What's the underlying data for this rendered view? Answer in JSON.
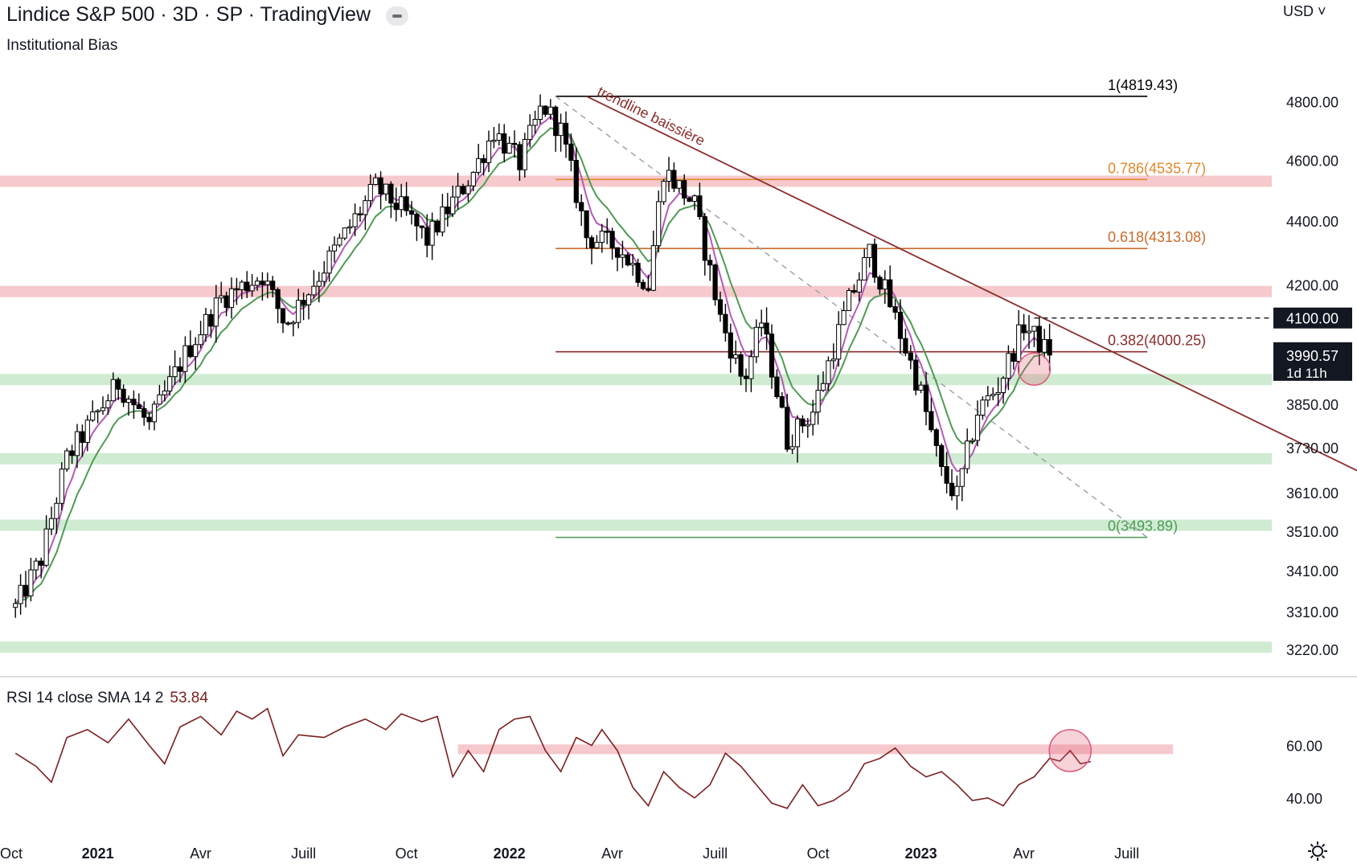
{
  "header": {
    "title": "Lindice S&P 500 · 3D · SP  · TradingView",
    "subtitle": "Institutional Bias",
    "currency": "USD",
    "collapse_icon": "minus-icon"
  },
  "settings_icon": "gear-icon",
  "colors": {
    "candle": "#000000",
    "ema_fast": "#b45ab8",
    "ema_slow": "#4f9a55",
    "resistance_zone": "#f6c9cc",
    "support_zone": "#cfecd2",
    "trendline": "#8b2c2c",
    "fib_0786": "#e0892b",
    "fib_0618": "#c96b2a",
    "fib_0382": "#8b2c2c",
    "rsi_line": "#7b1f1f"
  },
  "chart_data": [
    {
      "type": "candlestick",
      "title": "Lindice S&P 500",
      "timeframe": "3D",
      "price_scale": "log",
      "ylim": [
        3160,
        5080
      ],
      "x_ticks": [
        "Oct",
        "2021",
        "Avr",
        "Juill",
        "Oct",
        "2022",
        "Avr",
        "Juill",
        "Oct",
        "2023",
        "Avr",
        "Juill"
      ],
      "y_ticks": [
        4800.0,
        4600.0,
        4400.0,
        4200.0,
        3850.0,
        3730.0,
        3610.0,
        3510.0,
        3410.0,
        3310.0,
        3220.0
      ],
      "path_points": [
        {
          "t": 0,
          "p": 3320
        },
        {
          "t": 10,
          "p": 3440
        },
        {
          "t": 20,
          "p": 3700
        },
        {
          "t": 40,
          "p": 3910
        },
        {
          "t": 52,
          "p": 3790
        },
        {
          "t": 65,
          "p": 3980
        },
        {
          "t": 80,
          "p": 4160
        },
        {
          "t": 96,
          "p": 4230
        },
        {
          "t": 105,
          "p": 4080
        },
        {
          "t": 118,
          "p": 4230
        },
        {
          "t": 140,
          "p": 4510
        },
        {
          "t": 150,
          "p": 4440
        },
        {
          "t": 160,
          "p": 4340
        },
        {
          "t": 178,
          "p": 4560
        },
        {
          "t": 186,
          "p": 4700
        },
        {
          "t": 196,
          "p": 4590
        },
        {
          "t": 205,
          "p": 4790
        },
        {
          "t": 212,
          "p": 4700
        },
        {
          "t": 222,
          "p": 4350
        },
        {
          "t": 234,
          "p": 4320
        },
        {
          "t": 246,
          "p": 4200
        },
        {
          "t": 252,
          "p": 4570
        },
        {
          "t": 264,
          "p": 4450
        },
        {
          "t": 274,
          "p": 4100
        },
        {
          "t": 283,
          "p": 3910
        },
        {
          "t": 290,
          "p": 4090
        },
        {
          "t": 300,
          "p": 3750
        },
        {
          "t": 310,
          "p": 3830
        },
        {
          "t": 324,
          "p": 4150
        },
        {
          "t": 332,
          "p": 4300
        },
        {
          "t": 340,
          "p": 4140
        },
        {
          "t": 352,
          "p": 3880
        },
        {
          "t": 360,
          "p": 3660
        },
        {
          "t": 366,
          "p": 3600
        },
        {
          "t": 374,
          "p": 3830
        },
        {
          "t": 382,
          "p": 3900
        },
        {
          "t": 392,
          "p": 4080
        },
        {
          "t": 402,
          "p": 3990.57
        }
      ],
      "moving_averages": [
        {
          "name": "",
          "color_key": "ema_fast"
        },
        {
          "name": "",
          "color_key": "ema_slow"
        }
      ],
      "last_price": {
        "value": "3990.57",
        "countdown": "1d 11h"
      },
      "marked_level": {
        "value": "4100.00",
        "line": "dashed"
      },
      "zones": [
        {
          "kind": "resistance",
          "price": 4530
        },
        {
          "kind": "resistance",
          "price": 4180
        },
        {
          "kind": "support",
          "price": 3920
        },
        {
          "kind": "support",
          "price": 3700
        },
        {
          "kind": "support",
          "price": 3525
        },
        {
          "kind": "support",
          "price": 3225
        }
      ],
      "fibonacci": {
        "start_t": 210,
        "end_t": 440,
        "levels": [
          {
            "ratio": 1,
            "price": 4819.43,
            "label": "1(4819.43)",
            "color_key": "candle"
          },
          {
            "ratio": 0.786,
            "price": 4535.77,
            "label": "0.786(4535.77)",
            "color_key": "fib_0786"
          },
          {
            "ratio": 0.618,
            "price": 4313.08,
            "label": "0.618(4313.08)",
            "color_key": "fib_0618"
          },
          {
            "ratio": 0.382,
            "price": 4000.25,
            "label": "0.382(4000.25)",
            "color_key": "fib_0382"
          },
          {
            "ratio": 0,
            "price": 3493.89,
            "label": "0(3493.89)",
            "color_key": "ema_slow"
          }
        ]
      },
      "trendline": {
        "label": "trendline baissière",
        "from": {
          "t": 222,
          "p": 4819.43
        },
        "to": {
          "t": 530,
          "p": 3640
        }
      },
      "dashed_diagonal": {
        "from": {
          "t": 210,
          "p": 4819.43
        },
        "to": {
          "t": 440,
          "p": 3493.89
        }
      },
      "highlight": {
        "t": 396,
        "p": 3950
      }
    },
    {
      "type": "line",
      "title": "RSI 14 close SMA 14 2",
      "current_value": "53.84",
      "ylim": [
        28,
        80
      ],
      "y_ticks": [
        60.0,
        40.0
      ],
      "series": [
        {
          "name": "RSI",
          "points": [
            {
              "t": 0,
              "v": 57
            },
            {
              "t": 8,
              "v": 52
            },
            {
              "t": 14,
              "v": 46
            },
            {
              "t": 20,
              "v": 63
            },
            {
              "t": 28,
              "v": 66
            },
            {
              "t": 36,
              "v": 61
            },
            {
              "t": 44,
              "v": 70
            },
            {
              "t": 52,
              "v": 60
            },
            {
              "t": 58,
              "v": 53
            },
            {
              "t": 64,
              "v": 67
            },
            {
              "t": 72,
              "v": 71
            },
            {
              "t": 80,
              "v": 64
            },
            {
              "t": 86,
              "v": 73
            },
            {
              "t": 92,
              "v": 70
            },
            {
              "t": 98,
              "v": 74
            },
            {
              "t": 104,
              "v": 56
            },
            {
              "t": 110,
              "v": 64
            },
            {
              "t": 120,
              "v": 63
            },
            {
              "t": 128,
              "v": 67
            },
            {
              "t": 136,
              "v": 70
            },
            {
              "t": 144,
              "v": 66
            },
            {
              "t": 150,
              "v": 72
            },
            {
              "t": 158,
              "v": 69
            },
            {
              "t": 164,
              "v": 71
            },
            {
              "t": 170,
              "v": 48
            },
            {
              "t": 176,
              "v": 58
            },
            {
              "t": 182,
              "v": 50
            },
            {
              "t": 188,
              "v": 66
            },
            {
              "t": 194,
              "v": 70
            },
            {
              "t": 200,
              "v": 71
            },
            {
              "t": 206,
              "v": 58
            },
            {
              "t": 212,
              "v": 50
            },
            {
              "t": 218,
              "v": 63
            },
            {
              "t": 224,
              "v": 60
            },
            {
              "t": 228,
              "v": 66
            },
            {
              "t": 234,
              "v": 58
            },
            {
              "t": 240,
              "v": 44
            },
            {
              "t": 246,
              "v": 37
            },
            {
              "t": 252,
              "v": 50
            },
            {
              "t": 258,
              "v": 44
            },
            {
              "t": 264,
              "v": 40
            },
            {
              "t": 270,
              "v": 45
            },
            {
              "t": 276,
              "v": 57
            },
            {
              "t": 282,
              "v": 52
            },
            {
              "t": 288,
              "v": 45
            },
            {
              "t": 294,
              "v": 38
            },
            {
              "t": 300,
              "v": 36
            },
            {
              "t": 306,
              "v": 45
            },
            {
              "t": 312,
              "v": 37
            },
            {
              "t": 318,
              "v": 39
            },
            {
              "t": 324,
              "v": 43
            },
            {
              "t": 330,
              "v": 53
            },
            {
              "t": 336,
              "v": 55
            },
            {
              "t": 342,
              "v": 59
            },
            {
              "t": 348,
              "v": 52
            },
            {
              "t": 354,
              "v": 48
            },
            {
              "t": 360,
              "v": 50
            },
            {
              "t": 366,
              "v": 45
            },
            {
              "t": 372,
              "v": 39
            },
            {
              "t": 378,
              "v": 40
            },
            {
              "t": 384,
              "v": 37
            },
            {
              "t": 390,
              "v": 45
            },
            {
              "t": 396,
              "v": 48
            },
            {
              "t": 402,
              "v": 55
            },
            {
              "t": 406,
              "v": 54
            },
            {
              "t": 410,
              "v": 58
            },
            {
              "t": 414,
              "v": 53
            },
            {
              "t": 418,
              "v": 53.84
            }
          ]
        }
      ],
      "zone": {
        "from_t": 172,
        "to_t": 450,
        "value": 58.5
      },
      "highlight": {
        "t": 410,
        "v": 58
      }
    }
  ]
}
